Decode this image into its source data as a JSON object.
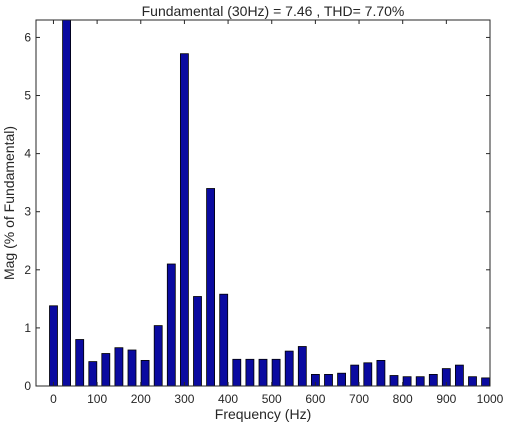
{
  "chart_data": {
    "type": "bar",
    "title": "Fundamental (30Hz) = 7.46 , THD= 7.70%",
    "xlabel": "Frequency (Hz)",
    "ylabel": "Mag (% of Fundamental)",
    "xlim": [
      -40,
      1000
    ],
    "ylim": [
      0,
      6.3
    ],
    "xticks": [
      "0",
      "100",
      "200",
      "300",
      "400",
      "500",
      "600",
      "700",
      "800",
      "900",
      "1000"
    ],
    "yticks": [
      "0",
      "1",
      "2",
      "3",
      "4",
      "5",
      "6"
    ],
    "bar_color": "#0a0aa0",
    "x": [
      0,
      30,
      60,
      90,
      120,
      150,
      180,
      210,
      240,
      270,
      300,
      330,
      360,
      390,
      420,
      450,
      480,
      510,
      540,
      570,
      600,
      630,
      660,
      690,
      720,
      750,
      780,
      810,
      840,
      870,
      900,
      930,
      960,
      990
    ],
    "values": [
      1.38,
      6.3,
      0.8,
      0.42,
      0.56,
      0.66,
      0.62,
      0.44,
      1.04,
      2.1,
      5.72,
      1.54,
      3.4,
      1.58,
      0.46,
      0.46,
      0.46,
      0.46,
      0.6,
      0.68,
      0.2,
      0.2,
      0.22,
      0.36,
      0.4,
      0.44,
      0.18,
      0.16,
      0.16,
      0.2,
      0.3,
      0.36,
      0.16,
      0.14
    ]
  }
}
